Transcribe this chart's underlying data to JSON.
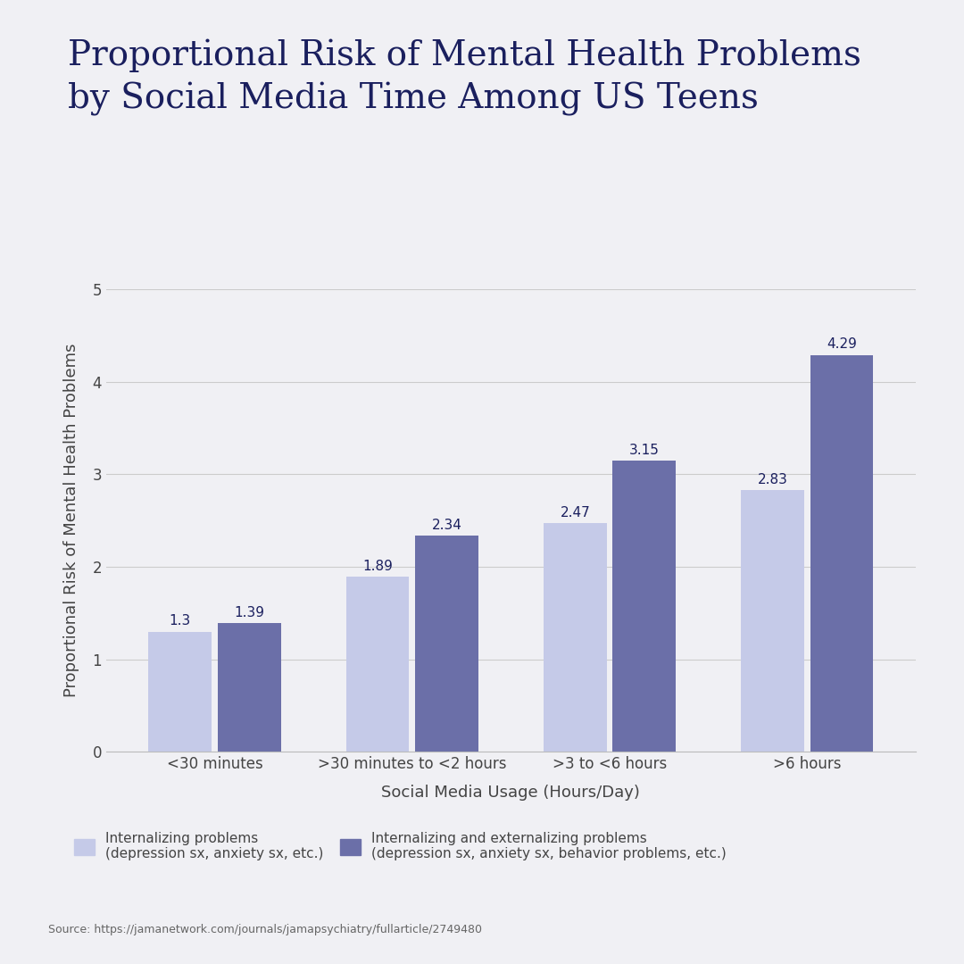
{
  "title": "Proportional Risk of Mental Health Problems\nby Social Media Time Among US Teens",
  "xlabel": "Social Media Usage (Hours/Day)",
  "ylabel": "Proportional Risk of Mental Health Problems",
  "background_color": "#f0f0f4",
  "categories": [
    "<30 minutes",
    ">30 minutes to <2 hours",
    ">3 to <6 hours",
    ">6 hours"
  ],
  "internalizing": [
    1.3,
    1.89,
    2.47,
    2.83
  ],
  "both": [
    1.39,
    2.34,
    3.15,
    4.29
  ],
  "color_internalizing": "#c5cae8",
  "color_both": "#6b6fa8",
  "ylim": [
    0,
    5
  ],
  "yticks": [
    0,
    1,
    2,
    3,
    4,
    5
  ],
  "title_color": "#1a1f5e",
  "label_color": "#444444",
  "bar_label_color": "#1a1f5e",
  "legend_label_1": "Internalizing problems\n(depression sx, anxiety sx, etc.)",
  "legend_label_2": "Internalizing and externalizing problems\n(depression sx, anxiety sx, behavior problems, etc.)",
  "source_text": "Source: https://jamanetwork.com/journals/jamapsychiatry/fullarticle/2749480",
  "title_fontsize": 28,
  "axis_label_fontsize": 13,
  "tick_fontsize": 12,
  "bar_label_fontsize": 11,
  "legend_fontsize": 11,
  "source_fontsize": 9
}
